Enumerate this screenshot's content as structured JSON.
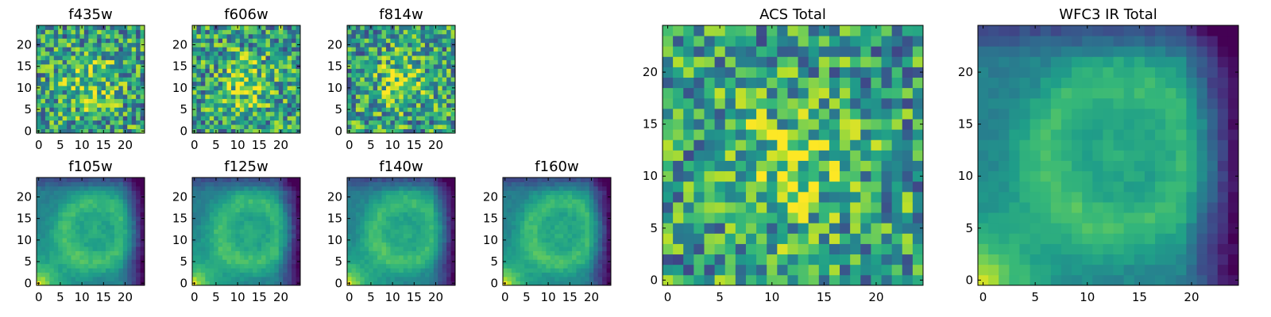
{
  "chart_data": [
    {
      "type": "heatmap",
      "title": "f435w",
      "grid_size": 25,
      "pattern": "noisy",
      "xticks": [
        0,
        5,
        10,
        15,
        20
      ],
      "yticks": [
        0,
        5,
        10,
        15,
        20
      ],
      "xlim": [
        0,
        24
      ],
      "ylim": [
        0,
        24
      ],
      "colormap": "viridis",
      "grid": false
    },
    {
      "type": "heatmap",
      "title": "f606w",
      "grid_size": 25,
      "pattern": "noisy",
      "xticks": [
        0,
        5,
        10,
        15,
        20
      ],
      "yticks": [
        0,
        5,
        10,
        15,
        20
      ],
      "xlim": [
        0,
        24
      ],
      "ylim": [
        0,
        24
      ],
      "colormap": "viridis",
      "grid": false
    },
    {
      "type": "heatmap",
      "title": "f814w",
      "grid_size": 25,
      "pattern": "noisy",
      "xticks": [
        0,
        5,
        10,
        15,
        20
      ],
      "yticks": [
        0,
        5,
        10,
        15,
        20
      ],
      "xlim": [
        0,
        24
      ],
      "ylim": [
        0,
        24
      ],
      "colormap": "viridis",
      "grid": false
    },
    {
      "type": "heatmap",
      "title": "f105w",
      "grid_size": 25,
      "pattern": "smooth",
      "xticks": [
        0,
        5,
        10,
        15,
        20
      ],
      "yticks": [
        0,
        5,
        10,
        15,
        20
      ],
      "xlim": [
        0,
        24
      ],
      "ylim": [
        0,
        24
      ],
      "colormap": "viridis",
      "grid": false
    },
    {
      "type": "heatmap",
      "title": "f125w",
      "grid_size": 25,
      "pattern": "smooth",
      "xticks": [
        0,
        5,
        10,
        15,
        20
      ],
      "yticks": [
        0,
        5,
        10,
        15,
        20
      ],
      "xlim": [
        0,
        24
      ],
      "ylim": [
        0,
        24
      ],
      "colormap": "viridis",
      "grid": false
    },
    {
      "type": "heatmap",
      "title": "f140w",
      "grid_size": 25,
      "pattern": "smooth",
      "xticks": [
        0,
        5,
        10,
        15,
        20
      ],
      "yticks": [
        0,
        5,
        10,
        15,
        20
      ],
      "xlim": [
        0,
        24
      ],
      "ylim": [
        0,
        24
      ],
      "colormap": "viridis",
      "grid": false
    },
    {
      "type": "heatmap",
      "title": "f160w",
      "grid_size": 25,
      "pattern": "smooth",
      "xticks": [
        0,
        5,
        10,
        15,
        20
      ],
      "yticks": [
        0,
        5,
        10,
        15,
        20
      ],
      "xlim": [
        0,
        24
      ],
      "ylim": [
        0,
        24
      ],
      "colormap": "viridis",
      "grid": false
    },
    {
      "type": "heatmap",
      "title": "ACS Total",
      "grid_size": 25,
      "pattern": "noisy",
      "xticks": [
        0,
        5,
        10,
        15,
        20
      ],
      "yticks": [
        0,
        5,
        10,
        15,
        20
      ],
      "xlim": [
        0,
        24
      ],
      "ylim": [
        0,
        24
      ],
      "colormap": "viridis",
      "grid": false
    },
    {
      "type": "heatmap",
      "title": "WFC3 IR Total",
      "grid_size": 25,
      "pattern": "smooth",
      "xticks": [
        0,
        5,
        10,
        15,
        20
      ],
      "yticks": [
        0,
        5,
        10,
        15,
        20
      ],
      "xlim": [
        0,
        24
      ],
      "ylim": [
        0,
        24
      ],
      "colormap": "viridis",
      "grid": false
    }
  ]
}
